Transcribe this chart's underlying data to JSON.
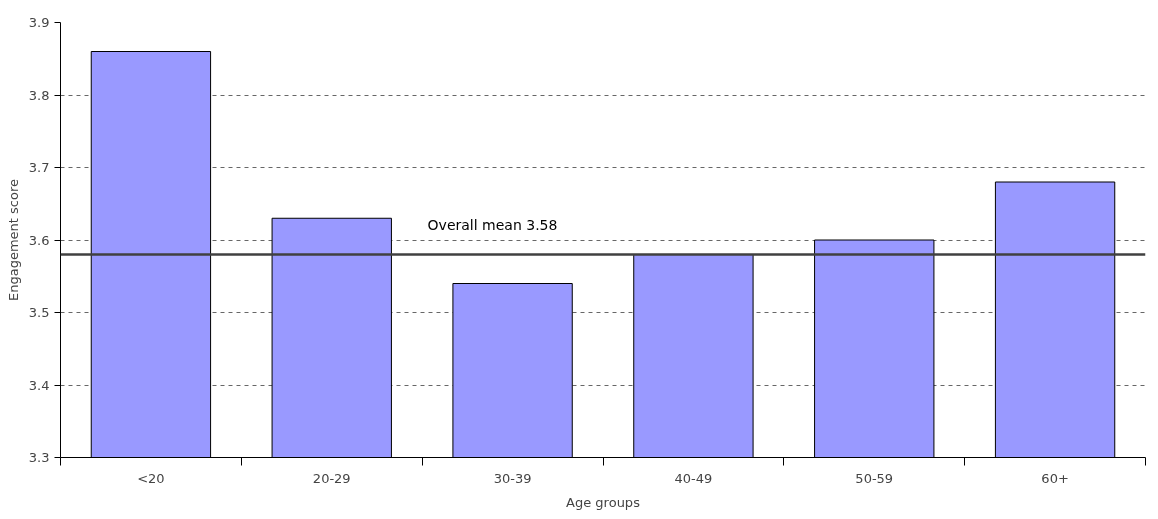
{
  "chart_data": {
    "type": "bar",
    "xlabel": "Age groups",
    "ylabel": "Engagement score",
    "categories": [
      "<20",
      "20-29",
      "30-39",
      "40-49",
      "50-59",
      "60+"
    ],
    "values": [
      3.86,
      3.63,
      3.54,
      3.58,
      3.6,
      3.68
    ],
    "color": "#9999ff",
    "ylim": [
      3.3,
      3.9
    ],
    "yticks": [
      3.3,
      3.4,
      3.5,
      3.6,
      3.7,
      3.8,
      3.9
    ],
    "grid": "y",
    "ref_lines": [
      {
        "axis": "y",
        "value": 3.58,
        "label": "Overall mean 3.58",
        "color": "#404040"
      }
    ]
  }
}
